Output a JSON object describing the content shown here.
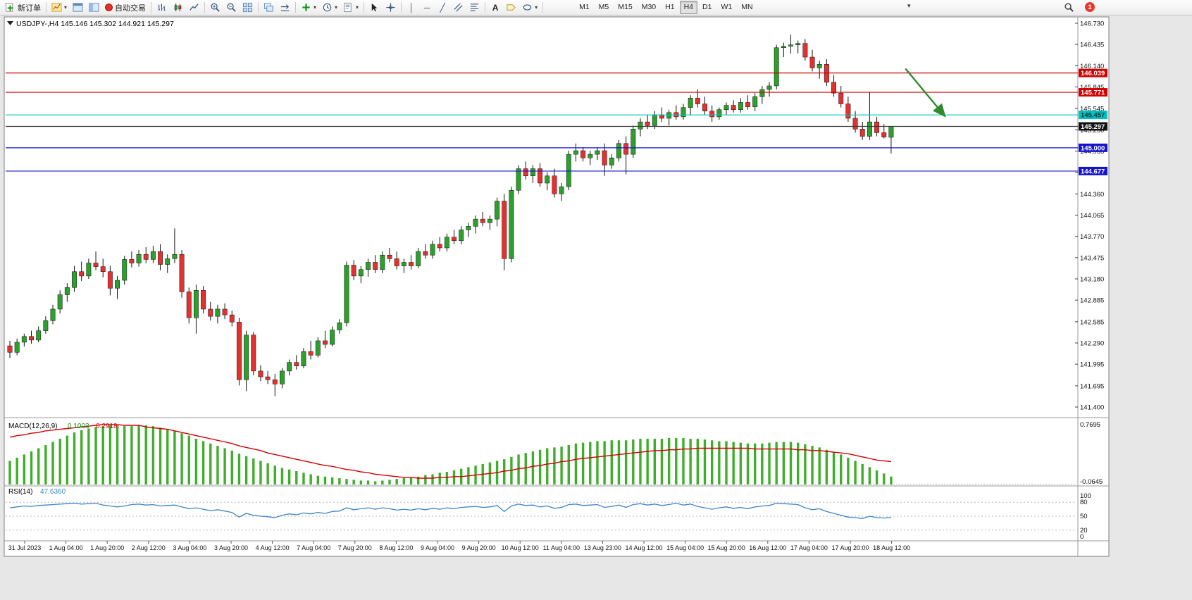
{
  "toolbar": {
    "new_order": "新订单",
    "auto_trading": "自动交易",
    "timeframes": [
      "M1",
      "M5",
      "M15",
      "M30",
      "H1",
      "H4",
      "D1",
      "W1",
      "MN"
    ],
    "active_timeframe": "H4",
    "badge_count": "1"
  },
  "chart_data": {
    "type": "candlestick",
    "symbol": "USDJPY-",
    "period": "H4",
    "title_text": "USDJPY-,H4 145.146 145.302 144.921 145.297",
    "current": {
      "open": 145.146,
      "high": 145.302,
      "low": 144.921,
      "close": 145.297
    },
    "up_color": "#2ca02c",
    "down_color": "#e53030",
    "price_axis": {
      "min": 141.4,
      "max": 146.73,
      "ticks": [
        "146.730",
        "146.435",
        "146.140",
        "145.845",
        "145.545",
        "145.250",
        "144.955",
        "144.660",
        "144.360",
        "144.065",
        "143.770",
        "143.475",
        "143.180",
        "142.885",
        "142.585",
        "142.290",
        "141.995",
        "141.695",
        "141.400"
      ]
    },
    "time_labels": [
      "31 Jul 2023",
      "1 Aug 04:00",
      "1 Aug 20:00",
      "2 Aug 12:00",
      "3 Aug 04:00",
      "3 Aug 20:00",
      "4 Aug 12:00",
      "7 Aug 04:00",
      "7 Aug 20:00",
      "8 Aug 12:00",
      "9 Aug 04:00",
      "9 Aug 20:00",
      "10 Aug 12:00",
      "11 Aug 04:00",
      "13 Aug 23:00",
      "14 Aug 12:00",
      "15 Aug 04:00",
      "15 Aug 20:00",
      "16 Aug 12:00",
      "17 Aug 04:00",
      "17 Aug 20:00",
      "18 Aug 12:00"
    ],
    "hlines": [
      {
        "price": 146.039,
        "label": "146.039",
        "color": "#d10000",
        "label_bg": "#d10000",
        "label_fg": "#ffffff"
      },
      {
        "price": 145.771,
        "label": "145.771",
        "color": "#d10000",
        "label_bg": "#d10000",
        "label_fg": "#ffffff"
      },
      {
        "price": 145.457,
        "label": "145.457",
        "color": "#00c2c2",
        "label_bg": "#00c2c2",
        "label_fg": "#003333"
      },
      {
        "price": 145.297,
        "label": "145.297",
        "color": "#3c3c3c",
        "label_bg": "#111111",
        "label_fg": "#ffffff"
      },
      {
        "price": 145.0,
        "label": "145.000",
        "color": "#1414cc",
        "label_bg": "#1414cc",
        "label_fg": "#ffffff"
      },
      {
        "price": 144.677,
        "label": "144.677",
        "color": "#1414cc",
        "label_bg": "#1414cc",
        "label_fg": "#ffffff"
      }
    ],
    "arrow": {
      "from": {
        "i": 125,
        "price": 146.1
      },
      "to": {
        "i": 130.5,
        "price": 145.44
      },
      "color": "#2e8b2e"
    },
    "candles": [
      [
        142.25,
        142.32,
        142.08,
        142.16
      ],
      [
        142.16,
        142.35,
        142.12,
        142.3
      ],
      [
        142.3,
        142.42,
        142.24,
        142.38
      ],
      [
        142.38,
        142.46,
        142.28,
        142.33
      ],
      [
        142.33,
        142.52,
        142.3,
        142.46
      ],
      [
        142.46,
        142.66,
        142.42,
        142.6
      ],
      [
        142.6,
        142.82,
        142.55,
        142.76
      ],
      [
        142.76,
        143.02,
        142.7,
        142.96
      ],
      [
        142.96,
        143.12,
        142.86,
        143.06
      ],
      [
        143.06,
        143.36,
        143.0,
        143.28
      ],
      [
        143.28,
        143.42,
        143.15,
        143.22
      ],
      [
        143.22,
        143.46,
        143.18,
        143.4
      ],
      [
        143.4,
        143.56,
        143.3,
        143.35
      ],
      [
        143.35,
        143.46,
        143.2,
        143.28
      ],
      [
        143.28,
        143.36,
        142.95,
        143.05
      ],
      [
        143.05,
        143.22,
        142.9,
        143.16
      ],
      [
        143.16,
        143.5,
        143.1,
        143.45
      ],
      [
        143.45,
        143.56,
        143.34,
        143.4
      ],
      [
        143.4,
        143.58,
        143.35,
        143.52
      ],
      [
        143.52,
        143.62,
        143.4,
        143.45
      ],
      [
        143.45,
        143.64,
        143.4,
        143.56
      ],
      [
        143.56,
        143.66,
        143.3,
        143.38
      ],
      [
        143.38,
        143.52,
        143.26,
        143.46
      ],
      [
        143.46,
        143.88,
        143.4,
        143.52
      ],
      [
        143.52,
        143.58,
        142.92,
        143.0
      ],
      [
        143.0,
        143.06,
        142.56,
        142.64
      ],
      [
        142.64,
        143.1,
        142.42,
        143.02
      ],
      [
        143.02,
        143.08,
        142.7,
        142.76
      ],
      [
        142.76,
        142.86,
        142.6,
        142.66
      ],
      [
        142.66,
        142.82,
        142.56,
        142.76
      ],
      [
        142.76,
        142.84,
        142.62,
        142.68
      ],
      [
        142.68,
        142.74,
        142.52,
        142.58
      ],
      [
        142.58,
        142.64,
        141.7,
        141.78
      ],
      [
        141.78,
        142.46,
        141.62,
        142.4
      ],
      [
        142.4,
        142.44,
        141.84,
        141.9
      ],
      [
        141.9,
        141.98,
        141.76,
        141.82
      ],
      [
        141.82,
        141.9,
        141.72,
        141.78
      ],
      [
        141.78,
        141.86,
        141.55,
        141.72
      ],
      [
        141.72,
        141.94,
        141.66,
        141.9
      ],
      [
        141.9,
        142.06,
        141.84,
        142.02
      ],
      [
        142.02,
        142.12,
        141.92,
        141.97
      ],
      [
        141.97,
        142.22,
        141.94,
        142.17
      ],
      [
        142.17,
        142.32,
        142.06,
        142.12
      ],
      [
        142.12,
        142.37,
        142.09,
        142.32
      ],
      [
        142.32,
        142.46,
        142.22,
        142.27
      ],
      [
        142.27,
        142.52,
        142.24,
        142.47
      ],
      [
        142.47,
        142.62,
        142.42,
        142.57
      ],
      [
        142.57,
        143.42,
        142.52,
        143.37
      ],
      [
        143.37,
        143.44,
        143.16,
        143.22
      ],
      [
        143.22,
        143.36,
        143.12,
        143.31
      ],
      [
        143.31,
        143.46,
        143.21,
        143.41
      ],
      [
        143.41,
        143.51,
        143.26,
        143.31
      ],
      [
        143.31,
        143.56,
        143.26,
        143.51
      ],
      [
        143.51,
        143.61,
        143.41,
        143.46
      ],
      [
        143.46,
        143.56,
        143.31,
        143.36
      ],
      [
        143.36,
        143.46,
        143.26,
        143.41
      ],
      [
        143.41,
        143.51,
        143.31,
        143.36
      ],
      [
        143.36,
        143.61,
        143.33,
        143.56
      ],
      [
        143.56,
        143.66,
        143.46,
        143.51
      ],
      [
        143.51,
        143.71,
        143.46,
        143.66
      ],
      [
        143.66,
        143.76,
        143.56,
        143.61
      ],
      [
        143.61,
        143.81,
        143.56,
        143.76
      ],
      [
        143.76,
        143.86,
        143.66,
        143.71
      ],
      [
        143.71,
        143.91,
        143.66,
        143.86
      ],
      [
        143.86,
        143.96,
        143.76,
        143.91
      ],
      [
        143.91,
        144.06,
        143.81,
        144.01
      ],
      [
        144.01,
        144.11,
        143.91,
        143.96
      ],
      [
        143.96,
        144.06,
        143.86,
        144.01
      ],
      [
        144.01,
        144.31,
        143.91,
        144.26
      ],
      [
        144.26,
        144.36,
        143.3,
        143.46
      ],
      [
        143.46,
        144.46,
        143.41,
        144.41
      ],
      [
        144.41,
        144.76,
        144.36,
        144.71
      ],
      [
        144.71,
        144.81,
        144.56,
        144.61
      ],
      [
        144.61,
        144.76,
        144.51,
        144.71
      ],
      [
        144.71,
        144.79,
        144.46,
        144.51
      ],
      [
        144.51,
        144.66,
        144.41,
        144.61
      ],
      [
        144.61,
        144.71,
        144.31,
        144.36
      ],
      [
        144.36,
        144.51,
        144.26,
        144.46
      ],
      [
        144.46,
        144.96,
        144.41,
        144.91
      ],
      [
        144.91,
        145.06,
        144.81,
        144.96
      ],
      [
        144.96,
        145.01,
        144.81,
        144.86
      ],
      [
        144.86,
        144.96,
        144.76,
        144.91
      ],
      [
        144.91,
        145.01,
        144.83,
        144.96
      ],
      [
        144.96,
        145.06,
        144.61,
        144.76
      ],
      [
        144.76,
        144.91,
        144.71,
        144.86
      ],
      [
        144.86,
        145.11,
        144.81,
        145.06
      ],
      [
        145.06,
        145.16,
        144.63,
        144.91
      ],
      [
        144.91,
        145.31,
        144.86,
        145.26
      ],
      [
        145.26,
        145.41,
        145.16,
        145.36
      ],
      [
        145.36,
        145.46,
        145.26,
        145.31
      ],
      [
        145.31,
        145.51,
        145.26,
        145.46
      ],
      [
        145.46,
        145.56,
        145.36,
        145.41
      ],
      [
        145.41,
        145.53,
        145.31,
        145.49
      ],
      [
        145.49,
        145.59,
        145.39,
        145.43
      ],
      [
        145.43,
        145.61,
        145.39,
        145.56
      ],
      [
        145.56,
        145.73,
        145.46,
        145.69
      ],
      [
        145.69,
        145.81,
        145.56,
        145.61
      ],
      [
        145.61,
        145.71,
        145.46,
        145.51
      ],
      [
        145.51,
        145.59,
        145.36,
        145.43
      ],
      [
        145.43,
        145.56,
        145.39,
        145.53
      ],
      [
        145.53,
        145.63,
        145.46,
        145.59
      ],
      [
        145.59,
        145.66,
        145.49,
        145.53
      ],
      [
        145.53,
        145.69,
        145.49,
        145.63
      ],
      [
        145.63,
        145.73,
        145.53,
        145.57
      ],
      [
        145.57,
        145.76,
        145.51,
        145.71
      ],
      [
        145.71,
        145.86,
        145.61,
        145.81
      ],
      [
        145.81,
        145.91,
        145.71,
        145.86
      ],
      [
        145.86,
        146.43,
        145.81,
        146.39
      ],
      [
        146.39,
        146.46,
        146.26,
        146.41
      ],
      [
        146.41,
        146.57,
        146.31,
        146.43
      ],
      [
        146.43,
        146.49,
        146.31,
        146.45
      ],
      [
        146.45,
        146.51,
        146.21,
        146.26
      ],
      [
        146.26,
        146.36,
        146.06,
        146.11
      ],
      [
        146.11,
        146.21,
        145.96,
        146.16
      ],
      [
        146.16,
        146.23,
        145.86,
        145.91
      ],
      [
        145.91,
        146.01,
        145.71,
        145.76
      ],
      [
        145.76,
        145.86,
        145.56,
        145.61
      ],
      [
        145.61,
        145.71,
        145.36,
        145.41
      ],
      [
        145.41,
        145.51,
        145.21,
        145.26
      ],
      [
        145.26,
        145.36,
        145.11,
        145.16
      ],
      [
        145.16,
        145.77,
        145.11,
        145.36
      ],
      [
        145.36,
        145.43,
        145.16,
        145.21
      ],
      [
        145.21,
        145.33,
        145.13,
        145.15
      ],
      [
        145.146,
        145.302,
        144.921,
        145.297
      ]
    ],
    "macd": {
      "label": "MACD(12,26,9)",
      "macd_value": "0.1003",
      "signal_value": "0.2918",
      "scale_top": "0.7695",
      "scale_bottom": "-0.0645",
      "hist_color": "#3fae2a",
      "signal_color": "#d10000",
      "histogram": [
        0.3,
        0.34,
        0.38,
        0.42,
        0.46,
        0.5,
        0.54,
        0.58,
        0.62,
        0.66,
        0.69,
        0.71,
        0.73,
        0.74,
        0.75,
        0.75,
        0.74,
        0.74,
        0.75,
        0.75,
        0.74,
        0.72,
        0.7,
        0.68,
        0.65,
        0.62,
        0.58,
        0.55,
        0.52,
        0.49,
        0.46,
        0.43,
        0.39,
        0.36,
        0.33,
        0.3,
        0.27,
        0.24,
        0.21,
        0.19,
        0.17,
        0.15,
        0.13,
        0.11,
        0.1,
        0.09,
        0.08,
        0.07,
        0.06,
        0.05,
        0.05,
        0.04,
        0.05,
        0.06,
        0.07,
        0.08,
        0.09,
        0.1,
        0.12,
        0.13,
        0.15,
        0.16,
        0.18,
        0.2,
        0.22,
        0.24,
        0.26,
        0.28,
        0.3,
        0.32,
        0.35,
        0.38,
        0.4,
        0.42,
        0.44,
        0.46,
        0.47,
        0.48,
        0.5,
        0.52,
        0.53,
        0.54,
        0.55,
        0.55,
        0.56,
        0.56,
        0.56,
        0.57,
        0.58,
        0.58,
        0.58,
        0.58,
        0.59,
        0.59,
        0.59,
        0.58,
        0.58,
        0.57,
        0.56,
        0.55,
        0.55,
        0.54,
        0.53,
        0.52,
        0.52,
        0.52,
        0.53,
        0.54,
        0.54,
        0.54,
        0.53,
        0.51,
        0.49,
        0.47,
        0.44,
        0.41,
        0.38,
        0.34,
        0.3,
        0.26,
        0.22,
        0.18,
        0.14,
        0.1
      ],
      "signal": [
        0.6,
        0.62,
        0.63,
        0.65,
        0.66,
        0.68,
        0.69,
        0.7,
        0.71,
        0.72,
        0.73,
        0.74,
        0.75,
        0.76,
        0.76,
        0.76,
        0.75,
        0.75,
        0.75,
        0.73,
        0.72,
        0.71,
        0.7,
        0.68,
        0.66,
        0.64,
        0.62,
        0.6,
        0.58,
        0.56,
        0.54,
        0.52,
        0.49,
        0.47,
        0.45,
        0.43,
        0.4,
        0.38,
        0.36,
        0.34,
        0.32,
        0.3,
        0.28,
        0.26,
        0.24,
        0.23,
        0.21,
        0.19,
        0.18,
        0.16,
        0.15,
        0.13,
        0.12,
        0.11,
        0.1,
        0.09,
        0.09,
        0.08,
        0.08,
        0.08,
        0.09,
        0.09,
        0.1,
        0.1,
        0.11,
        0.12,
        0.13,
        0.14,
        0.15,
        0.17,
        0.18,
        0.2,
        0.21,
        0.23,
        0.24,
        0.26,
        0.27,
        0.29,
        0.3,
        0.32,
        0.33,
        0.34,
        0.35,
        0.36,
        0.37,
        0.38,
        0.39,
        0.4,
        0.41,
        0.42,
        0.43,
        0.43,
        0.44,
        0.44,
        0.45,
        0.45,
        0.46,
        0.46,
        0.46,
        0.46,
        0.46,
        0.46,
        0.46,
        0.46,
        0.45,
        0.45,
        0.45,
        0.45,
        0.45,
        0.45,
        0.44,
        0.44,
        0.43,
        0.43,
        0.42,
        0.41,
        0.4,
        0.39,
        0.37,
        0.35,
        0.33,
        0.31,
        0.3,
        0.29
      ]
    },
    "rsi": {
      "label": "RSI(14)",
      "value": "47.6360",
      "color": "#3d85c8",
      "scale_labels": [
        "100",
        "80",
        "50",
        "20",
        "0"
      ],
      "levels": [
        80,
        50,
        20
      ],
      "series": [
        68,
        70,
        72,
        71,
        73,
        74,
        75,
        76,
        77,
        78,
        76,
        77,
        78,
        74,
        72,
        70,
        72,
        75,
        76,
        74,
        75,
        72,
        73,
        74,
        70,
        66,
        68,
        65,
        62,
        64,
        61,
        58,
        48,
        56,
        52,
        50,
        49,
        47,
        52,
        55,
        53,
        57,
        55,
        58,
        56,
        60,
        61,
        68,
        64,
        66,
        68,
        65,
        68,
        66,
        63,
        65,
        63,
        66,
        64,
        67,
        65,
        68,
        66,
        69,
        70,
        71,
        69,
        70,
        73,
        60,
        72,
        76,
        73,
        74,
        70,
        72,
        67,
        69,
        75,
        76,
        73,
        74,
        75,
        69,
        71,
        74,
        69,
        75,
        77,
        74,
        76,
        73,
        75,
        78,
        74,
        76,
        71,
        68,
        65,
        68,
        70,
        67,
        69,
        66,
        70,
        72,
        73,
        78,
        77,
        76,
        75,
        68,
        64,
        66,
        60,
        56,
        52,
        48,
        47,
        45,
        50,
        47,
        46,
        47.64
      ]
    }
  }
}
